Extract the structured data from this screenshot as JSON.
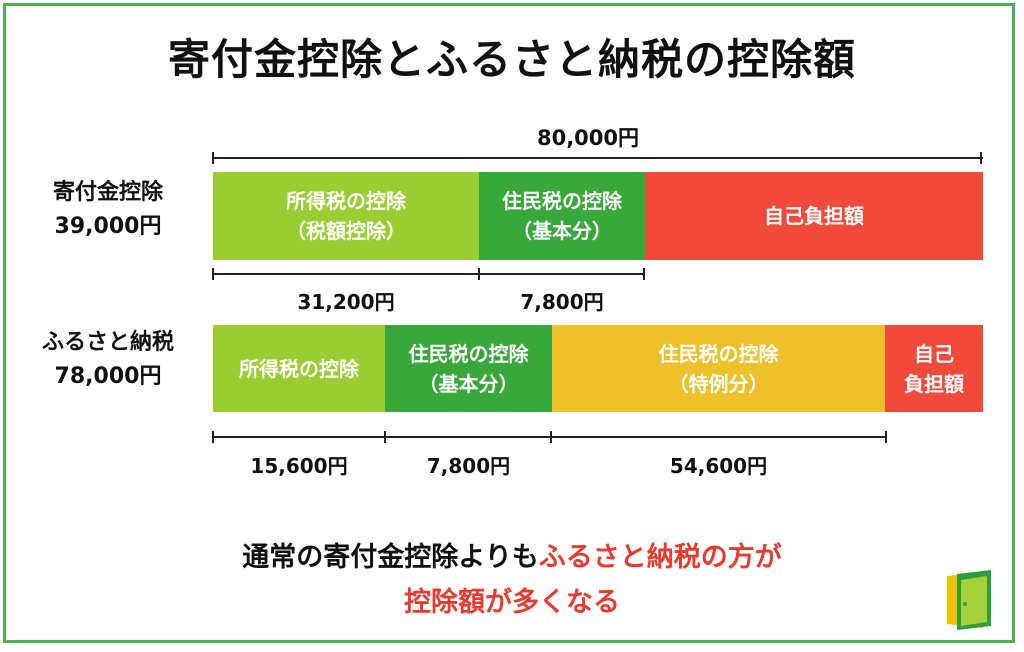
{
  "title": "寄付金控除とふるさと納税の控除額",
  "total": "80,000円",
  "row1": {
    "label_line1": "寄付金控除",
    "label_line2": "39,000円",
    "segments": [
      {
        "line1": "所得税の控除",
        "line2": "（税額控除）",
        "color": "#9acd32"
      },
      {
        "line1": "住民税の控除",
        "line2": "（基本分）",
        "color": "#38a83b"
      },
      {
        "line1": "自己負担額",
        "line2": "",
        "color": "#f24a3a"
      }
    ],
    "amounts": [
      "31,200円",
      "7,800円"
    ]
  },
  "row2": {
    "label_line1": "ふるさと納税",
    "label_line2": "78,000円",
    "segments": [
      {
        "line1": "所得税の控除",
        "line2": "",
        "color": "#9acd32"
      },
      {
        "line1": "住民税の控除",
        "line2": "（基本分）",
        "color": "#38a83b"
      },
      {
        "line1": "住民税の控除",
        "line2": "（特例分）",
        "color": "#eec02a"
      },
      {
        "line1": "自己",
        "line2": "負担額",
        "color": "#f24a3a"
      }
    ],
    "amounts": [
      "15,600円",
      "7,800円",
      "54,600円"
    ]
  },
  "conclusion": {
    "part1": "通常の寄付金控除よりも",
    "part2": "ふるさと納税の方が",
    "line2": "控除額が多くなる",
    "highlight_color": "#e63b2e"
  },
  "logo": {
    "icon": "door-logo-icon"
  }
}
